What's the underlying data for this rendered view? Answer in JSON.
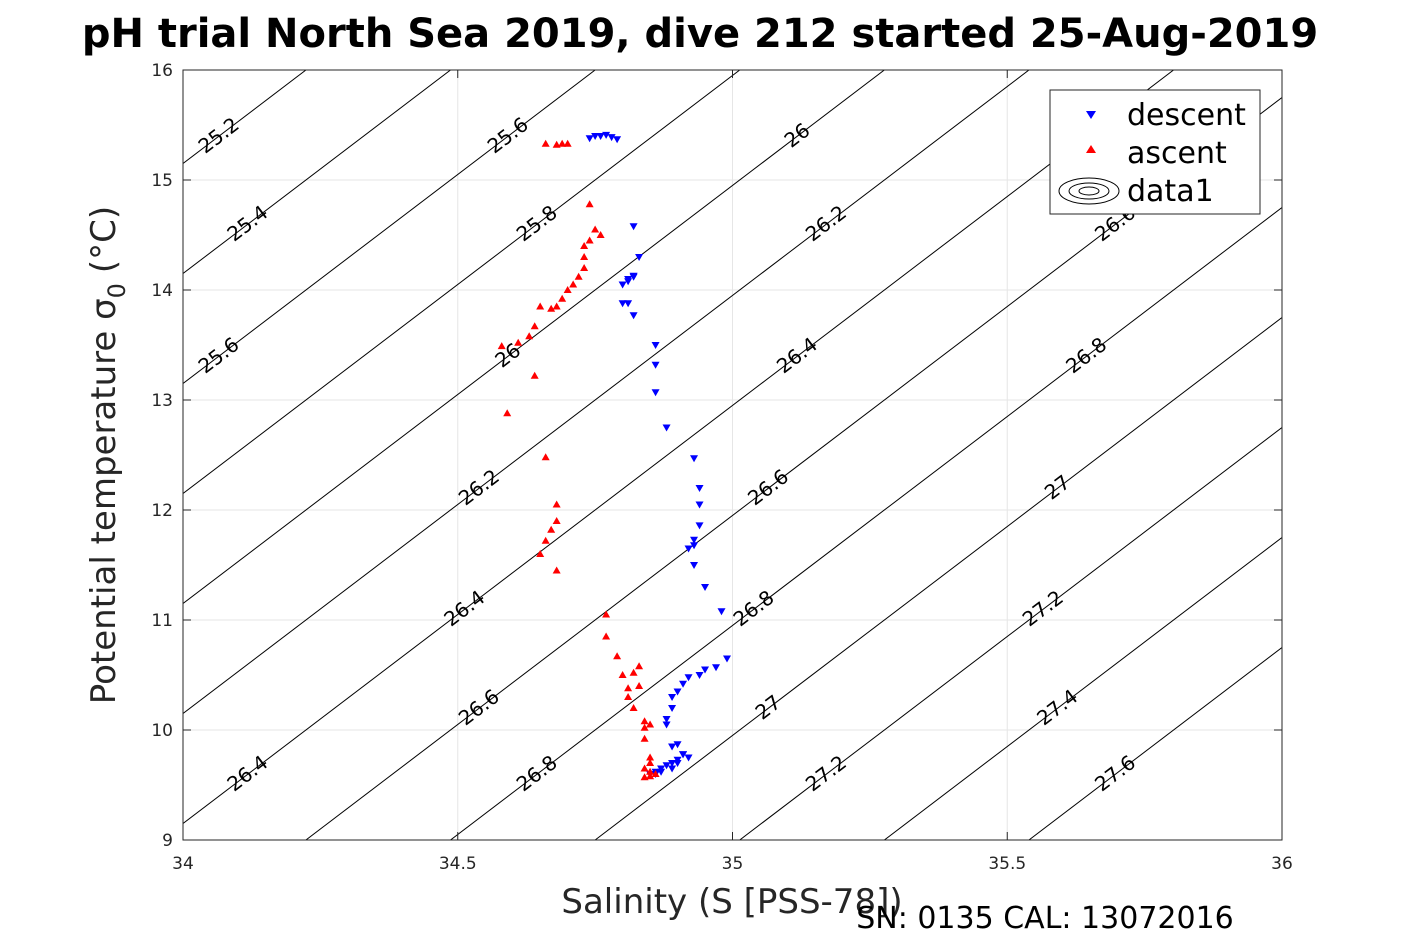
{
  "chart_data": {
    "type": "scatter",
    "title": "pH trial North Sea 2019, dive 212 started 25-Aug-2019",
    "xlabel": "Salinity (S [PSS-78])",
    "ylabel": "Potential temperature σ",
    "ylabel_subscript": "0",
    "ylabel_unit": "(°C)",
    "xlim": [
      34,
      36
    ],
    "ylim": [
      9,
      16
    ],
    "xticks": [
      34,
      34.5,
      35,
      35.5,
      36
    ],
    "xtick_labels": [
      "34",
      "34.5",
      "35",
      "35.5",
      "36"
    ],
    "yticks": [
      9,
      10,
      11,
      12,
      13,
      14,
      15,
      16
    ],
    "ytick_labels": [
      "9",
      "10",
      "11",
      "12",
      "13",
      "14",
      "15",
      "16"
    ],
    "grid": true,
    "legend_position": "top-right",
    "legend": [
      "descent",
      "ascent",
      "data1"
    ],
    "footer": "SN: 0135  CAL: 13072016",
    "series": [
      {
        "name": "descent",
        "marker": "triangle-down",
        "color": "#0000ff",
        "x": [
          34.74,
          34.75,
          34.76,
          34.77,
          34.78,
          34.79,
          34.82,
          34.83,
          34.8,
          34.81,
          34.82,
          34.8,
          34.81,
          34.82,
          34.81,
          34.82,
          34.86,
          34.86,
          34.86,
          34.88,
          34.93,
          34.94,
          34.94,
          34.94,
          34.93,
          34.92,
          34.93,
          34.93,
          34.95,
          34.98,
          34.99,
          34.97,
          34.95,
          34.94,
          34.92,
          34.91,
          34.9,
          34.89,
          34.89,
          34.88,
          34.88,
          34.89,
          34.9,
          34.91,
          34.92,
          34.9,
          34.89,
          34.88,
          34.87,
          34.86,
          34.85,
          34.86,
          34.87,
          34.89,
          34.9,
          34.91
        ],
        "y": [
          15.38,
          15.4,
          15.4,
          15.41,
          15.39,
          15.37,
          14.58,
          14.3,
          14.05,
          14.08,
          14.12,
          13.88,
          13.88,
          13.77,
          14.1,
          14.13,
          13.5,
          13.32,
          13.07,
          12.75,
          12.47,
          12.2,
          12.05,
          11.86,
          11.73,
          11.65,
          11.5,
          11.68,
          11.3,
          11.08,
          10.65,
          10.57,
          10.55,
          10.5,
          10.48,
          10.42,
          10.35,
          10.3,
          10.2,
          10.1,
          10.05,
          9.85,
          9.87,
          9.78,
          9.75,
          9.73,
          9.7,
          9.68,
          9.65,
          9.62,
          9.6,
          9.6,
          9.62,
          9.65,
          9.7,
          9.78
        ]
      },
      {
        "name": "ascent",
        "marker": "triangle-up",
        "color": "#ff0000",
        "x": [
          34.66,
          34.68,
          34.69,
          34.7,
          34.74,
          34.75,
          34.76,
          34.74,
          34.73,
          34.73,
          34.73,
          34.72,
          34.71,
          34.7,
          34.69,
          34.68,
          34.67,
          34.65,
          34.64,
          34.63,
          34.61,
          34.58,
          34.64,
          34.59,
          34.66,
          34.68,
          34.68,
          34.67,
          34.66,
          34.65,
          34.68,
          34.77,
          34.77,
          34.79,
          34.8,
          34.81,
          34.82,
          34.81,
          34.82,
          34.83,
          34.83,
          34.84,
          34.85,
          34.84,
          34.84,
          34.85,
          34.85,
          34.84,
          34.85,
          34.86,
          34.85,
          34.84
        ],
        "y": [
          15.33,
          15.32,
          15.33,
          15.33,
          14.78,
          14.55,
          14.5,
          14.45,
          14.4,
          14.3,
          14.2,
          14.12,
          14.05,
          14.0,
          13.92,
          13.85,
          13.83,
          13.85,
          13.67,
          13.58,
          13.52,
          13.49,
          13.22,
          12.88,
          12.48,
          12.05,
          11.9,
          11.82,
          11.72,
          11.6,
          11.45,
          11.05,
          10.85,
          10.67,
          10.5,
          10.38,
          10.52,
          10.3,
          10.2,
          10.58,
          10.4,
          10.08,
          10.05,
          10.02,
          9.92,
          9.75,
          9.7,
          9.65,
          9.62,
          9.6,
          9.58,
          9.57
        ]
      }
    ],
    "contour_lines": [
      25.2,
      25.4,
      25.6,
      25.8,
      26,
      26.2,
      26.4,
      26.6,
      26.8,
      27,
      27.2,
      27.4,
      27.6
    ]
  }
}
